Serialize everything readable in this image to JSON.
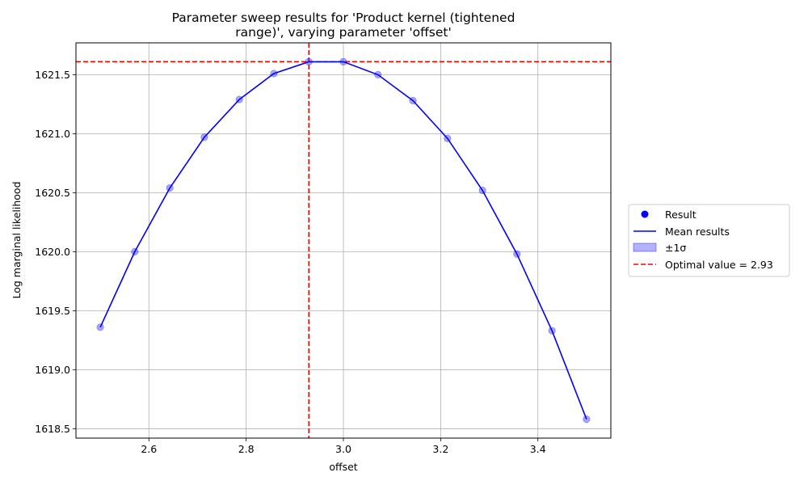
{
  "chart_data": {
    "type": "line",
    "title": "Parameter sweep results for 'Product kernel (tightened range)', varying parameter 'offset'",
    "title_lines": [
      "Parameter sweep results for 'Product kernel (tightened",
      "range)', varying parameter 'offset'"
    ],
    "xlabel": "offset",
    "ylabel": "Log marginal likelihood",
    "xlim": [
      2.45,
      3.55
    ],
    "ylim": [
      1618.42,
      1621.77
    ],
    "xticks": [
      2.6,
      2.8,
      3.0,
      3.2,
      3.4
    ],
    "xtick_labels": [
      "2.6",
      "2.8",
      "3.0",
      "3.2",
      "3.4"
    ],
    "yticks": [
      1618.5,
      1619.0,
      1619.5,
      1620.0,
      1620.5,
      1621.0,
      1621.5
    ],
    "ytick_labels": [
      "1618.5",
      "1619.0",
      "1619.5",
      "1620.0",
      "1620.5",
      "1621.0",
      "1621.5"
    ],
    "grid": true,
    "legend_position": "right",
    "series": [
      {
        "name": "Result",
        "kind": "scatter",
        "color": "#0000ff",
        "x": [
          2.5,
          2.571,
          2.643,
          2.714,
          2.786,
          2.857,
          2.929,
          3.0,
          3.071,
          3.143,
          3.214,
          3.286,
          3.357,
          3.429,
          3.5
        ],
        "y": [
          1619.36,
          1620.0,
          1620.54,
          1620.97,
          1621.29,
          1621.51,
          1621.61,
          1621.61,
          1621.5,
          1621.28,
          1620.96,
          1620.52,
          1619.98,
          1619.33,
          1618.58
        ]
      },
      {
        "name": "Mean results",
        "kind": "line",
        "color": "#0000ff",
        "x": [
          2.5,
          2.571,
          2.643,
          2.714,
          2.786,
          2.857,
          2.929,
          3.0,
          3.071,
          3.143,
          3.214,
          3.286,
          3.357,
          3.429,
          3.5
        ],
        "y": [
          1619.36,
          1620.0,
          1620.54,
          1620.97,
          1621.29,
          1621.51,
          1621.61,
          1621.61,
          1621.5,
          1621.28,
          1620.96,
          1620.52,
          1619.98,
          1619.33,
          1618.58
        ]
      }
    ],
    "band_label": "±1σ",
    "band_color": "#0000ff",
    "optimal": {
      "x": 2.929,
      "y": 1621.61,
      "color": "#ff0000",
      "label": "Optimal value = 2.93"
    },
    "legend": [
      "Result",
      "Mean results",
      "±1σ",
      "Optimal value = 2.93"
    ]
  }
}
